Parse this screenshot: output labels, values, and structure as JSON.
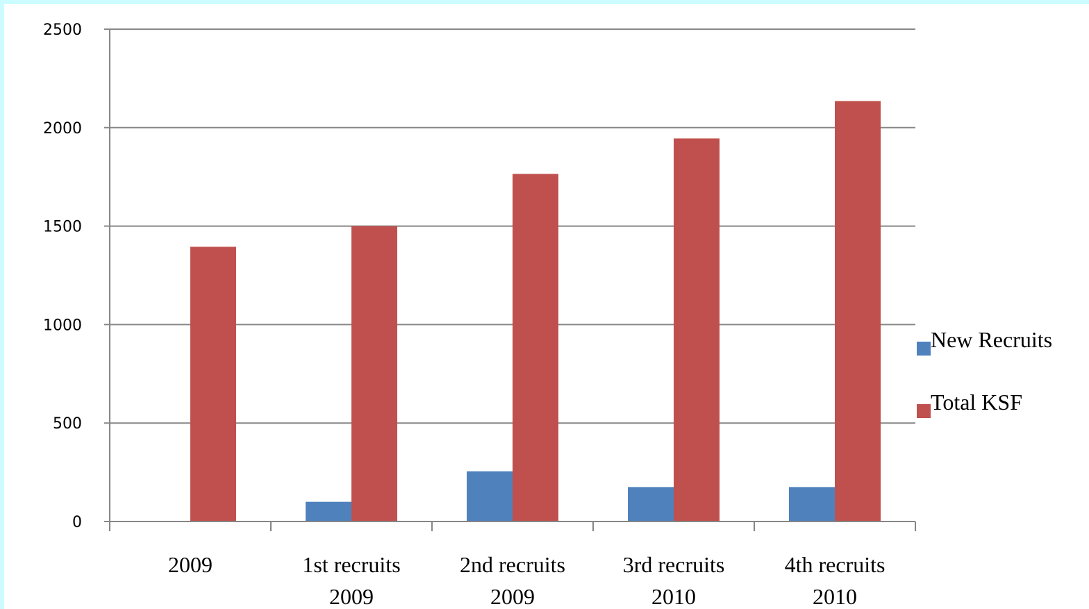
{
  "chart_data": {
    "type": "bar",
    "categories": [
      [
        "2009"
      ],
      [
        "1st recruits",
        "2009"
      ],
      [
        "2nd recruits",
        "2009"
      ],
      [
        "3rd recruits",
        "2010"
      ],
      [
        "4th recruits",
        "2010"
      ]
    ],
    "series": [
      {
        "name": "New Recruits",
        "values": [
          0,
          100,
          255,
          175,
          175
        ],
        "color": "#4f81bd"
      },
      {
        "name": "Total KSF",
        "values": [
          1395,
          1500,
          1765,
          1945,
          2135
        ],
        "color": "#c0504d"
      }
    ],
    "title": "",
    "xlabel": "",
    "ylabel": "",
    "ylim": [
      0,
      2500
    ],
    "yticks": [
      0,
      500,
      1000,
      1500,
      2000,
      2500
    ],
    "grid": true,
    "legend": "right"
  }
}
